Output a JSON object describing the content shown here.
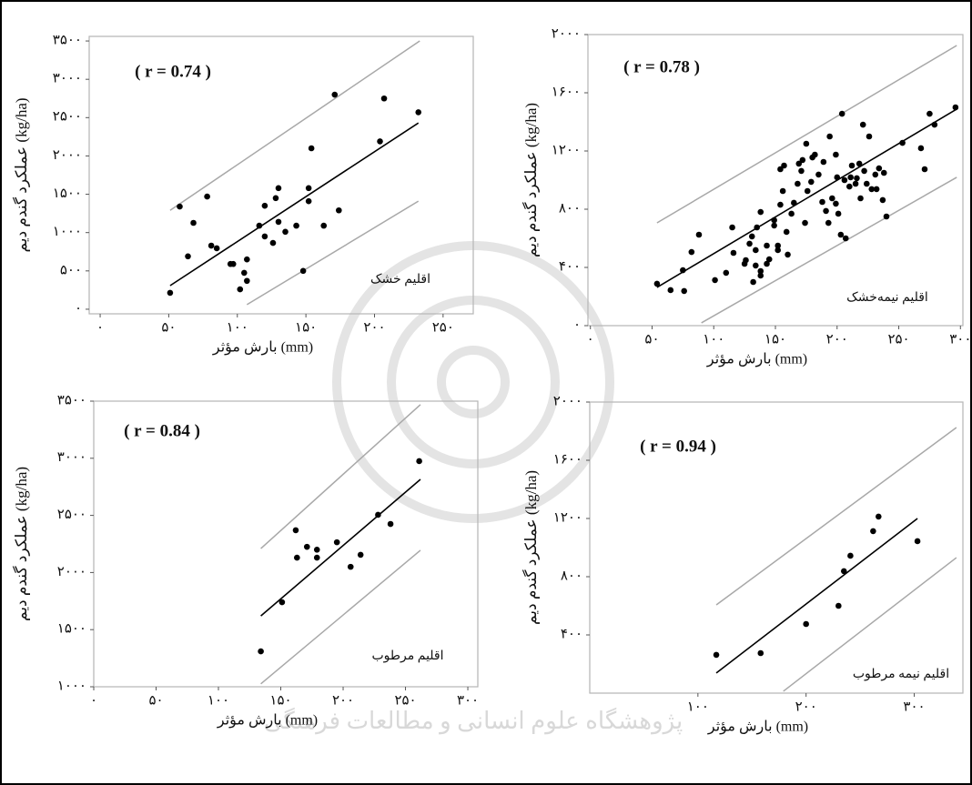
{
  "chart_data": [
    {
      "type": "scatter",
      "y_label": "عملکرد گندم دیم (kg/ha)",
      "x_label": "بارش مؤثر (mm)",
      "annotation": "( r = 0.74 )",
      "region_label": "اقلیم خشک",
      "color": "#000000",
      "x": [
        51,
        58,
        64,
        68,
        81,
        85,
        78,
        95,
        97,
        102,
        105,
        107,
        107,
        116,
        120,
        120,
        126,
        128,
        130,
        130,
        135,
        143,
        148,
        152,
        152,
        154,
        163,
        174,
        171,
        204,
        207,
        232
      ],
      "values": [
        214,
        1340,
        690,
        1127,
        830,
        795,
        1470,
        590,
        590,
        260,
        475,
        650,
        370,
        1090,
        1350,
        950,
        865,
        1450,
        1140,
        1580,
        1010,
        1090,
        500,
        1580,
        1410,
        2100,
        1090,
        1290,
        2800,
        2190,
        2750,
        2570
      ],
      "fit": [
        [
          51,
          308
        ],
        [
          232,
          2430
        ]
      ],
      "bands": [
        [
          [
            51,
            1290
          ],
          [
            233,
            3500
          ]
        ],
        [
          [
            107,
            60
          ],
          [
            232,
            1410
          ]
        ]
      ],
      "xlim": [
        -8,
        272
      ],
      "ylim": [
        -60,
        3560
      ],
      "xticks": [
        {
          "value": 0,
          "label": "۰"
        },
        {
          "value": 50,
          "label": "۵۰"
        },
        {
          "value": 100,
          "label": "۱۰۰"
        },
        {
          "value": 150,
          "label": "۱۵۰"
        },
        {
          "value": 200,
          "label": "۲۰۰"
        },
        {
          "value": 250,
          "label": "۲۵۰"
        }
      ],
      "yticks": [
        {
          "value": 0,
          "label": "۰"
        },
        {
          "value": 500,
          "label": "۵۰۰"
        },
        {
          "value": 1000,
          "label": "۱۰۰۰"
        },
        {
          "value": 1500,
          "label": "۱۵۰۰"
        },
        {
          "value": 2000,
          "label": "۲۰۰۰"
        },
        {
          "value": 2500,
          "label": "۲۵۰۰"
        },
        {
          "value": 3000,
          "label": "۳۰۰۰"
        },
        {
          "value": 3500,
          "label": "۳۵۰۰"
        }
      ]
    },
    {
      "type": "scatter",
      "y_label": "عملکرد گندم دیم (kg/ha)",
      "x_label": "بارش مؤثر (mm)",
      "annotation": "( r = 0.78 )",
      "region_label": "اقلیم نیمه‌خشک",
      "color": "#000000",
      "x": [
        54,
        65,
        76,
        75,
        82,
        88,
        101,
        110,
        116,
        115,
        126,
        125,
        129,
        131,
        134,
        134,
        135,
        138,
        132,
        138,
        138,
        143,
        145,
        143,
        149,
        149,
        152,
        152,
        154,
        154,
        157,
        156,
        159,
        160,
        163,
        165,
        168,
        169,
        171,
        172,
        175,
        174,
        176,
        179,
        180,
        182,
        185,
        188,
        189,
        191,
        193,
        194,
        196,
        199,
        199,
        200,
        201,
        203,
        204,
        206,
        207,
        210,
        211,
        212,
        215,
        216,
        218,
        219,
        221,
        222,
        224,
        226,
        228,
        231,
        232,
        234,
        237,
        238,
        240,
        253,
        268,
        271,
        275,
        279,
        296
      ],
      "values": [
        288,
        244,
        238,
        381,
        506,
        625,
        313,
        363,
        500,
        675,
        450,
        425,
        563,
        613,
        413,
        519,
        675,
        781,
        300,
        375,
        344,
        425,
        456,
        550,
        688,
        725,
        519,
        550,
        831,
        1075,
        1100,
        925,
        644,
        488,
        769,
        844,
        975,
        1113,
        1063,
        1138,
        1250,
        706,
        925,
        988,
        1156,
        1175,
        1038,
        850,
        1125,
        788,
        706,
        1300,
        875,
        838,
        1175,
        1019,
        769,
        625,
        1456,
        1000,
        600,
        956,
        1019,
        1100,
        975,
        1013,
        1113,
        875,
        1381,
        1063,
        975,
        1300,
        938,
        1038,
        938,
        1081,
        863,
        1050,
        750,
        1256,
        1219,
        1075,
        1456,
        1381,
        1500
      ],
      "fit": [
        [
          54,
          263
        ],
        [
          297,
          1488
        ]
      ],
      "bands": [
        [
          [
            54,
            706
          ],
          [
            297,
            1925
          ]
        ],
        [
          [
            90,
            19
          ],
          [
            297,
            1019
          ]
        ]
      ],
      "xlim": [
        -2,
        302
      ],
      "ylim": [
        0,
        2000
      ],
      "xticks": [
        {
          "value": 0,
          "label": "۰"
        },
        {
          "value": 50,
          "label": "۵۰"
        },
        {
          "value": 100,
          "label": "۱۰۰"
        },
        {
          "value": 150,
          "label": "۱۵۰"
        },
        {
          "value": 200,
          "label": "۲۰۰"
        },
        {
          "value": 250,
          "label": "۲۵۰"
        },
        {
          "value": 300,
          "label": "۳۰۰"
        }
      ],
      "yticks": [
        {
          "value": 0,
          "label": "۰"
        },
        {
          "value": 400,
          "label": "۴۰۰"
        },
        {
          "value": 800,
          "label": "۸۰۰"
        },
        {
          "value": 1200,
          "label": "۱۲۰۰"
        },
        {
          "value": 1600,
          "label": "۱۶۰۰"
        },
        {
          "value": 2000,
          "label": "۲۰۰۰"
        }
      ]
    },
    {
      "type": "scatter",
      "y_label": "عملکرد گندم دیم (kg/ha)",
      "x_label": "بارش مؤثر (mm)",
      "annotation": "( r = 0.84 )",
      "region_label": "اقلیم مرطوب",
      "color": "#000000",
      "x": [
        134,
        151,
        162,
        163,
        171,
        179,
        179,
        195,
        206,
        214,
        228,
        238,
        261
      ],
      "values": [
        1310,
        1740,
        2370,
        2130,
        2225,
        2200,
        2130,
        2265,
        2050,
        2155,
        2505,
        2425,
        2975
      ],
      "fit": [
        [
          134,
          1620
        ],
        [
          262,
          2815
        ]
      ],
      "bands": [
        [
          [
            134,
            2210
          ],
          [
            262,
            3470
          ]
        ],
        [
          [
            134,
            1025
          ],
          [
            262,
            2195
          ]
        ]
      ],
      "xlim": [
        0,
        308
      ],
      "ylim": [
        1000,
        3500
      ],
      "xticks": [
        {
          "value": 0,
          "label": "۰"
        },
        {
          "value": 50,
          "label": "۵۰"
        },
        {
          "value": 100,
          "label": "۱۰۰"
        },
        {
          "value": 150,
          "label": "۱۵۰"
        },
        {
          "value": 200,
          "label": "۲۰۰"
        },
        {
          "value": 250,
          "label": "۲۵۰"
        },
        {
          "value": 300,
          "label": "۳۰۰"
        }
      ],
      "yticks": [
        {
          "value": 1000,
          "label": "۱۰۰۰"
        },
        {
          "value": 1500,
          "label": "۱۵۰۰"
        },
        {
          "value": 2000,
          "label": "۲۰۰۰"
        },
        {
          "value": 2500,
          "label": "۲۵۰۰"
        },
        {
          "value": 3000,
          "label": "۳۰۰۰"
        },
        {
          "value": 3500,
          "label": "۳۵۰۰"
        }
      ]
    },
    {
      "type": "scatter",
      "y_label": "عملکرد گندم دیم (kg/ha)",
      "x_label": "بارش مؤثر (mm)",
      "annotation": "( r = 0.94 )",
      "region_label": "اقلیم نیمه مرطوب",
      "color": "#000000",
      "x": [
        117,
        158,
        200,
        230,
        235,
        241,
        262,
        267,
        303
      ],
      "values": [
        263,
        275,
        475,
        600,
        838,
        944,
        1113,
        1213,
        1044
      ],
      "fit": [
        [
          117,
          138
        ],
        [
          303,
          1200
        ]
      ],
      "bands": [
        [
          [
            117,
            606
          ],
          [
            339,
            1825
          ]
        ],
        [
          [
            179,
            13
          ],
          [
            339,
            931
          ]
        ]
      ],
      "xlim": [
        0,
        345
      ],
      "ylim": [
        0,
        2000
      ],
      "xticks": [
        {
          "value": 100,
          "label": "۱۰۰"
        },
        {
          "value": 200,
          "label": "۲۰۰"
        },
        {
          "value": 300,
          "label": "۳۰۰"
        }
      ],
      "yticks": [
        {
          "value": 400,
          "label": "۴۰۰"
        },
        {
          "value": 800,
          "label": "۸۰۰"
        },
        {
          "value": 1200,
          "label": "۱۲۰۰"
        },
        {
          "value": 1600,
          "label": "۱۶۰۰"
        },
        {
          "value": 2000,
          "label": "۲۰۰۰"
        }
      ]
    }
  ],
  "watermark": "پژوهشگاه علوم انسانی و مطالعات فرهنگی"
}
